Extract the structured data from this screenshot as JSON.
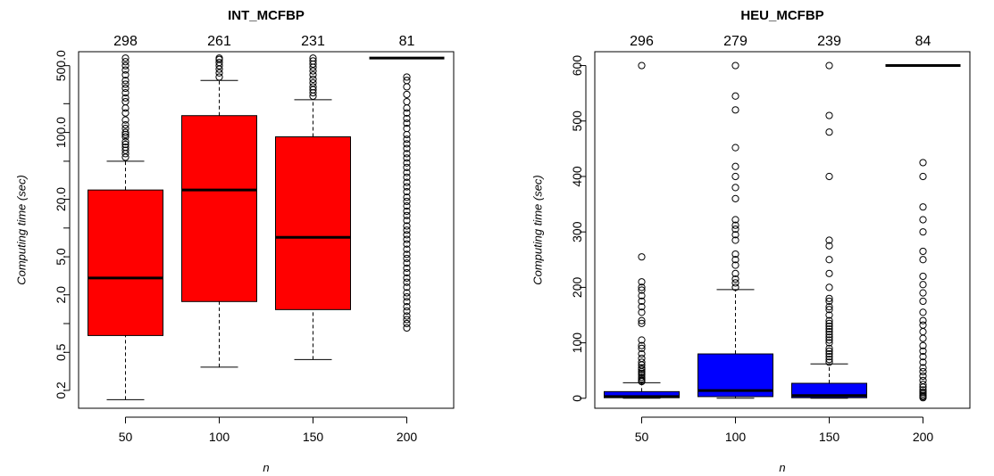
{
  "chart_data": [
    {
      "type": "boxplot",
      "title": "INT_MCFBP",
      "xlabel": "n",
      "ylabel": "Computing time (sec)",
      "yscale": "log",
      "ylim": [
        0.13,
        700
      ],
      "yticks": [
        {
          "value": 0.2,
          "label": "0.2"
        },
        {
          "value": 0.5,
          "label": "0.5"
        },
        {
          "value": 2,
          "label": "2.0"
        },
        {
          "value": 5,
          "label": "5.0"
        },
        {
          "value": 20,
          "label": "20.0"
        },
        {
          "value": 100,
          "label": "100.0"
        },
        {
          "value": 500,
          "label": "500.0"
        }
      ],
      "minor_yticks": [
        1,
        10,
        50,
        200
      ],
      "box_color": "#ff0000",
      "categories": [
        "50",
        "100",
        "150",
        "200"
      ],
      "counts": [
        "298",
        "261",
        "231",
        "81"
      ],
      "boxes": [
        {
          "whisker_low": 0.16,
          "q1": 0.75,
          "median": 3.0,
          "q3": 25,
          "whisker_high": 50,
          "outliers": [
            55,
            60,
            65,
            70,
            75,
            80,
            90,
            95,
            100,
            110,
            120,
            135,
            160,
            180,
            210,
            230,
            260,
            290,
            320,
            350,
            400,
            450,
            500,
            550,
            600
          ]
        },
        {
          "whisker_low": 0.35,
          "q1": 1.7,
          "median": 25,
          "q3": 150,
          "whisker_high": 350,
          "outliers": [
            380,
            420,
            460,
            500,
            540,
            580,
            600
          ]
        },
        {
          "whisker_low": 0.42,
          "q1": 1.4,
          "median": 8,
          "q3": 90,
          "whisker_high": 220,
          "outliers": [
            240,
            260,
            280,
            300,
            330,
            360,
            400,
            440,
            480,
            520,
            560,
            600
          ]
        },
        {
          "whisker_low": 600,
          "q1": 600,
          "median": 600,
          "q3": 600,
          "whisker_high": 600,
          "outliers": [
            0.9,
            1.0,
            1.1,
            1.2,
            1.35,
            1.5,
            1.7,
            1.9,
            2.1,
            2.4,
            2.7,
            3.0,
            3.4,
            3.8,
            4.3,
            4.8,
            5.3,
            6,
            6.8,
            7.6,
            8.5,
            9.5,
            10.5,
            12,
            13.5,
            15,
            17,
            19,
            21,
            24,
            27,
            30,
            34,
            38,
            43,
            48,
            54,
            60,
            68,
            76,
            85,
            95,
            110,
            125,
            140,
            160,
            180,
            210,
            250,
            300,
            350,
            380
          ]
        }
      ]
    },
    {
      "type": "boxplot",
      "title": "HEU_MCFBP",
      "xlabel": "n",
      "ylabel": "Computing time (sec)",
      "yscale": "linear",
      "ylim": [
        -18,
        625
      ],
      "yticks": [
        {
          "value": 0,
          "label": "0"
        },
        {
          "value": 100,
          "label": "100"
        },
        {
          "value": 200,
          "label": "200"
        },
        {
          "value": 300,
          "label": "300"
        },
        {
          "value": 400,
          "label": "400"
        },
        {
          "value": 500,
          "label": "500"
        },
        {
          "value": 600,
          "label": "600"
        }
      ],
      "box_color": "#0000ff",
      "categories": [
        "50",
        "100",
        "150",
        "200"
      ],
      "counts": [
        "296",
        "279",
        "239",
        "84"
      ],
      "boxes": [
        {
          "whisker_low": 0,
          "q1": 1,
          "median": 3,
          "q3": 12,
          "whisker_high": 28,
          "outliers": [
            30,
            32,
            35,
            38,
            42,
            45,
            48,
            52,
            55,
            60,
            65,
            72,
            80,
            90,
            95,
            105,
            135,
            140,
            155,
            165,
            175,
            185,
            195,
            200,
            210,
            255,
            600
          ]
        },
        {
          "whisker_low": 0,
          "q1": 3,
          "median": 14,
          "q3": 80,
          "whisker_high": 196,
          "outliers": [
            200,
            208,
            215,
            225,
            240,
            250,
            260,
            285,
            295,
            305,
            312,
            322,
            360,
            380,
            400,
            418,
            452,
            520,
            545,
            600
          ]
        },
        {
          "whisker_low": 0,
          "q1": 1,
          "median": 5,
          "q3": 27,
          "whisker_high": 62,
          "outliers": [
            65,
            70,
            75,
            80,
            85,
            90,
            100,
            105,
            110,
            115,
            120,
            125,
            130,
            135,
            140,
            150,
            160,
            165,
            175,
            180,
            200,
            225,
            250,
            275,
            285,
            400,
            480,
            510,
            600
          ]
        },
        {
          "whisker_low": 600,
          "q1": 600,
          "median": 600,
          "q3": 600,
          "whisker_high": 600,
          "outliers": [
            1,
            3,
            5,
            8,
            11,
            15,
            20,
            25,
            32,
            40,
            48,
            55,
            65,
            75,
            85,
            95,
            108,
            120,
            132,
            140,
            155,
            175,
            190,
            205,
            220,
            250,
            265,
            300,
            322,
            345,
            400,
            425
          ]
        }
      ]
    }
  ]
}
